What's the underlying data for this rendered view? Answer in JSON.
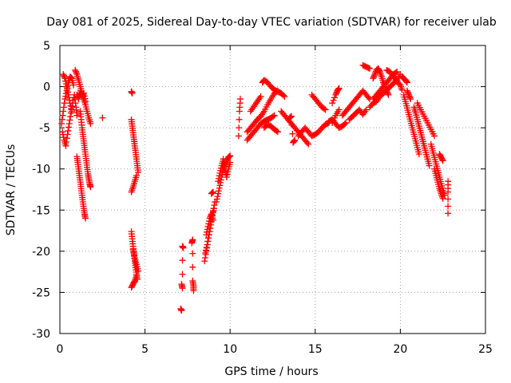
{
  "chart_data": {
    "type": "scatter",
    "title": "Day 081 of 2025, Sidereal Day-to-day VTEC variation (SDTVAR) for receiver ulab",
    "xlabel": "GPS time / hours",
    "ylabel": "SDTVAR / TECUs",
    "xlim": [
      0,
      25
    ],
    "ylim": [
      -30,
      5
    ],
    "xticks": [
      0,
      5,
      10,
      15,
      20,
      25
    ],
    "yticks": [
      -30,
      -25,
      -20,
      -15,
      -10,
      -5,
      0,
      5
    ],
    "grid": true,
    "marker": "+",
    "color": "#ff0000",
    "segments": [
      [
        [
          0.1,
          -4.5
        ],
        [
          0.2,
          -3.0
        ],
        [
          0.3,
          -1.5
        ],
        [
          0.4,
          -0.5
        ],
        [
          0.5,
          0.5
        ],
        [
          0.6,
          1.2
        ],
        [
          0.7,
          1.0
        ],
        [
          0.8,
          0.2
        ]
      ],
      [
        [
          0.15,
          -5.5
        ],
        [
          0.25,
          -6.5
        ],
        [
          0.35,
          -7.2
        ],
        [
          0.45,
          -5.8
        ],
        [
          0.55,
          -4.5
        ],
        [
          0.65,
          -3.2
        ],
        [
          0.75,
          -2.0
        ],
        [
          0.85,
          -1.0
        ],
        [
          0.95,
          -2.5
        ],
        [
          1.0,
          -3.5
        ]
      ],
      [
        [
          0.2,
          1.5
        ],
        [
          0.3,
          1.0
        ],
        [
          0.4,
          0.0
        ],
        [
          0.5,
          -1.0
        ],
        [
          0.6,
          -2.0
        ],
        [
          0.7,
          -3.0
        ]
      ],
      [
        [
          0.9,
          2.0
        ],
        [
          1.0,
          1.5
        ],
        [
          1.1,
          0.8
        ],
        [
          1.2,
          0.0
        ],
        [
          1.3,
          -0.8
        ],
        [
          1.4,
          -1.5
        ],
        [
          1.5,
          -2.2
        ],
        [
          1.6,
          -3.0
        ],
        [
          1.7,
          -3.8
        ],
        [
          1.8,
          -4.5
        ]
      ],
      [
        [
          1.0,
          -8.5
        ],
        [
          1.05,
          -9.2
        ],
        [
          1.1,
          -10.0
        ],
        [
          1.15,
          -10.8
        ],
        [
          1.2,
          -11.6
        ],
        [
          1.25,
          -12.4
        ],
        [
          1.3,
          -13.2
        ],
        [
          1.35,
          -14.0
        ],
        [
          1.4,
          -14.8
        ],
        [
          1.45,
          -15.5
        ],
        [
          1.5,
          -16.0
        ]
      ],
      [
        [
          1.2,
          -3.0
        ],
        [
          1.25,
          -4.0
        ],
        [
          1.3,
          -5.0
        ],
        [
          1.35,
          -5.8
        ],
        [
          1.4,
          -6.6
        ],
        [
          1.45,
          -7.4
        ],
        [
          1.5,
          -8.2
        ],
        [
          1.55,
          -9.0
        ],
        [
          1.6,
          -9.8
        ],
        [
          1.65,
          -10.6
        ],
        [
          1.7,
          -11.2
        ],
        [
          1.75,
          -11.8
        ],
        [
          1.8,
          -12.2
        ]
      ],
      [
        [
          1.0,
          -1.0
        ],
        [
          1.1,
          -1.5
        ],
        [
          1.2,
          -0.5
        ],
        [
          1.3,
          -1.2
        ],
        [
          1.4,
          -0.8
        ],
        [
          1.5,
          -1.8
        ]
      ],
      [
        [
          2.5,
          -3.8
        ]
      ],
      [
        [
          4.2,
          -0.6
        ],
        [
          4.25,
          -0.8
        ]
      ],
      [
        [
          4.2,
          -4.0
        ],
        [
          4.25,
          -4.8
        ],
        [
          4.3,
          -5.6
        ],
        [
          4.35,
          -6.4
        ],
        [
          4.4,
          -7.2
        ],
        [
          4.45,
          -8.0
        ],
        [
          4.5,
          -8.8
        ],
        [
          4.55,
          -9.6
        ],
        [
          4.6,
          -10.4
        ]
      ],
      [
        [
          4.2,
          -12.8
        ],
        [
          4.3,
          -12.2
        ],
        [
          4.4,
          -11.5
        ],
        [
          4.5,
          -10.8
        ]
      ],
      [
        [
          4.2,
          -17.6
        ],
        [
          4.25,
          -18.5
        ],
        [
          4.3,
          -19.4
        ],
        [
          4.35,
          -20.3
        ],
        [
          4.4,
          -21.2
        ],
        [
          4.45,
          -22.0
        ],
        [
          4.5,
          -22.8
        ],
        [
          4.55,
          -23.4
        ]
      ],
      [
        [
          4.2,
          -24.4
        ],
        [
          4.3,
          -24.0
        ],
        [
          4.4,
          -23.6
        ],
        [
          4.5,
          -23.0
        ]
      ],
      [
        [
          4.3,
          -19.8
        ],
        [
          4.4,
          -20.8
        ],
        [
          4.5,
          -21.6
        ],
        [
          4.6,
          -22.4
        ]
      ],
      [
        [
          7.1,
          -27.0
        ],
        [
          7.15,
          -27.2
        ]
      ],
      [
        [
          7.15,
          -24.0
        ],
        [
          7.2,
          -24.5
        ],
        [
          7.2,
          -19.4
        ],
        [
          7.25,
          -19.6
        ]
      ],
      [
        [
          7.75,
          -19.0
        ],
        [
          7.8,
          -18.6
        ],
        [
          7.8,
          -23.6
        ],
        [
          7.85,
          -24.2
        ],
        [
          7.85,
          -24.8
        ]
      ],
      [
        [
          8.5,
          -21.2
        ],
        [
          8.6,
          -20.0
        ],
        [
          8.7,
          -18.8
        ],
        [
          8.8,
          -17.6
        ],
        [
          8.9,
          -16.4
        ],
        [
          9.0,
          -15.2
        ],
        [
          9.1,
          -14.0
        ]
      ],
      [
        [
          8.55,
          -20.2
        ],
        [
          8.65,
          -19.2
        ],
        [
          8.75,
          -18.0
        ],
        [
          8.85,
          -16.8
        ],
        [
          8.95,
          -15.6
        ],
        [
          9.05,
          -14.8
        ]
      ],
      [
        [
          8.6,
          -18.0
        ],
        [
          8.7,
          -17.0
        ],
        [
          8.8,
          -16.0
        ],
        [
          8.9,
          -15.5
        ],
        [
          9.0,
          -16.2
        ]
      ],
      [
        [
          8.9,
          -13.0
        ],
        [
          9.0,
          -12.8
        ]
      ],
      [
        [
          9.2,
          -14.0
        ],
        [
          9.3,
          -13.0
        ],
        [
          9.4,
          -12.0
        ],
        [
          9.5,
          -11.0
        ],
        [
          9.6,
          -10.0
        ],
        [
          9.7,
          -9.5
        ],
        [
          9.8,
          -9.0
        ],
        [
          9.9,
          -8.6
        ],
        [
          10.0,
          -8.4
        ]
      ],
      [
        [
          9.3,
          -11.5
        ],
        [
          9.4,
          -10.5
        ],
        [
          9.5,
          -9.6
        ],
        [
          9.6,
          -8.8
        ],
        [
          9.7,
          -10.2
        ],
        [
          9.8,
          -11.0
        ],
        [
          9.9,
          -10.0
        ],
        [
          10.0,
          -9.2
        ]
      ],
      [
        [
          10.5,
          -6.0
        ],
        [
          10.55,
          -3.0
        ],
        [
          10.6,
          -1.5
        ]
      ],
      [
        [
          11.0,
          -6.5
        ],
        [
          11.2,
          -6.0
        ],
        [
          11.4,
          -5.5
        ],
        [
          11.6,
          -5.0
        ],
        [
          11.8,
          -4.5
        ],
        [
          12.0,
          -4.2
        ],
        [
          12.2,
          -4.0
        ],
        [
          12.4,
          -3.8
        ],
        [
          12.6,
          -3.5
        ]
      ],
      [
        [
          11.0,
          -5.5
        ],
        [
          11.2,
          -5.0
        ],
        [
          11.4,
          -4.5
        ],
        [
          11.6,
          -4.0
        ],
        [
          11.8,
          -3.6
        ],
        [
          12.0,
          -3.0
        ],
        [
          12.2,
          -2.2
        ],
        [
          12.4,
          -1.5
        ],
        [
          12.6,
          -0.8
        ],
        [
          12.8,
          -0.5
        ]
      ],
      [
        [
          11.2,
          -3.0
        ],
        [
          11.4,
          -2.4
        ],
        [
          11.6,
          -1.8
        ],
        [
          11.8,
          -1.2
        ]
      ],
      [
        [
          11.9,
          0.5
        ],
        [
          12.0,
          0.8
        ],
        [
          12.2,
          0.5
        ],
        [
          12.4,
          0.0
        ],
        [
          12.6,
          -0.4
        ],
        [
          12.8,
          -0.6
        ],
        [
          13.0,
          -0.8
        ],
        [
          13.2,
          -1.2
        ]
      ],
      [
        [
          13.0,
          -3.0
        ],
        [
          13.2,
          -3.5
        ],
        [
          13.4,
          -4.0
        ],
        [
          13.6,
          -4.5
        ],
        [
          13.8,
          -5.0
        ],
        [
          14.0,
          -5.5
        ],
        [
          14.2,
          -6.0
        ],
        [
          14.4,
          -6.5
        ],
        [
          14.6,
          -7.0
        ]
      ],
      [
        [
          12.0,
          -5.0
        ],
        [
          12.2,
          -4.6
        ],
        [
          12.4,
          -4.8
        ],
        [
          12.6,
          -5.2
        ],
        [
          12.8,
          -5.5
        ]
      ],
      [
        [
          13.5,
          -3.8
        ],
        [
          13.6,
          -3.6
        ],
        [
          13.7,
          -6.8
        ],
        [
          13.8,
          -6.5
        ]
      ],
      [
        [
          14.0,
          -6.0
        ],
        [
          14.2,
          -5.5
        ],
        [
          14.4,
          -5.0
        ],
        [
          14.6,
          -5.5
        ],
        [
          14.8,
          -6.0
        ],
        [
          15.0,
          -5.8
        ],
        [
          15.2,
          -5.5
        ],
        [
          15.4,
          -5.0
        ],
        [
          15.6,
          -4.6
        ],
        [
          15.8,
          -4.4
        ]
      ],
      [
        [
          14.8,
          -1.0
        ],
        [
          15.0,
          -1.5
        ],
        [
          15.2,
          -2.0
        ],
        [
          15.4,
          -2.5
        ],
        [
          15.6,
          -2.8
        ]
      ],
      [
        [
          15.8,
          -4.2
        ],
        [
          16.0,
          -4.0
        ],
        [
          16.2,
          -4.5
        ],
        [
          16.4,
          -5.0
        ],
        [
          16.6,
          -4.8
        ],
        [
          16.8,
          -4.4
        ]
      ],
      [
        [
          16.0,
          -2.0
        ],
        [
          16.2,
          -1.0
        ],
        [
          16.3,
          -0.5
        ],
        [
          16.4,
          -0.2
        ]
      ],
      [
        [
          16.6,
          -3.5
        ],
        [
          16.8,
          -3.0
        ],
        [
          17.0,
          -2.5
        ],
        [
          17.2,
          -2.0
        ],
        [
          17.4,
          -1.5
        ],
        [
          17.6,
          -1.0
        ],
        [
          17.8,
          -0.5
        ],
        [
          18.0,
          -1.0
        ],
        [
          18.2,
          -1.5
        ]
      ],
      [
        [
          17.0,
          -4.0
        ],
        [
          17.2,
          -3.6
        ],
        [
          17.4,
          -3.2
        ],
        [
          17.6,
          -2.8
        ],
        [
          17.8,
          -3.4
        ],
        [
          18.0,
          -2.8
        ]
      ],
      [
        [
          16.0,
          -4.4
        ],
        [
          16.2,
          -3.5
        ],
        [
          16.4,
          -2.8
        ]
      ],
      [
        [
          17.8,
          2.6
        ],
        [
          18.0,
          2.4
        ],
        [
          18.2,
          2.2
        ]
      ],
      [
        [
          18.4,
          1.0
        ],
        [
          18.5,
          1.5
        ],
        [
          18.6,
          2.0
        ],
        [
          18.7,
          2.2
        ],
        [
          18.8,
          1.8
        ],
        [
          18.9,
          1.2
        ],
        [
          19.0,
          0.5
        ],
        [
          19.1,
          0.0
        ],
        [
          19.2,
          -0.5
        ],
        [
          19.3,
          -1.0
        ]
      ],
      [
        [
          18.4,
          -1.5
        ],
        [
          18.6,
          -1.0
        ],
        [
          18.8,
          -0.5
        ],
        [
          19.0,
          0.0
        ],
        [
          19.2,
          0.5
        ],
        [
          19.4,
          1.0
        ],
        [
          19.6,
          1.5
        ],
        [
          19.8,
          1.8
        ]
      ],
      [
        [
          18.2,
          -2.5
        ],
        [
          18.4,
          -2.0
        ],
        [
          18.6,
          -1.8
        ],
        [
          18.8,
          -1.2
        ],
        [
          19.0,
          -0.8
        ],
        [
          19.2,
          -0.4
        ],
        [
          19.4,
          0.0
        ],
        [
          19.6,
          0.4
        ],
        [
          19.8,
          0.8
        ],
        [
          20.0,
          1.5
        ]
      ],
      [
        [
          19.2,
          2.0
        ],
        [
          19.4,
          1.8
        ],
        [
          19.6,
          1.2
        ],
        [
          19.8,
          0.6
        ],
        [
          20.0,
          0.2
        ],
        [
          20.1,
          -0.4
        ]
      ],
      [
        [
          20.1,
          1.2
        ],
        [
          20.2,
          1.0
        ],
        [
          20.3,
          0.8
        ],
        [
          20.4,
          0.5
        ]
      ],
      [
        [
          20.2,
          -1.0
        ],
        [
          20.3,
          -1.8
        ],
        [
          20.4,
          -2.6
        ],
        [
          20.5,
          -3.4
        ],
        [
          20.6,
          -4.2
        ],
        [
          20.7,
          -5.0
        ],
        [
          20.8,
          -5.8
        ],
        [
          20.9,
          -6.6
        ],
        [
          21.0,
          -7.4
        ],
        [
          21.1,
          -8.2
        ]
      ],
      [
        [
          20.4,
          -0.5
        ],
        [
          20.5,
          -1.0
        ],
        [
          20.6,
          -1.5
        ]
      ],
      [
        [
          20.8,
          -2.5
        ],
        [
          20.9,
          -3.2
        ],
        [
          21.0,
          -4.0
        ],
        [
          21.1,
          -4.8
        ],
        [
          21.2,
          -5.6
        ],
        [
          21.3,
          -6.4
        ],
        [
          21.4,
          -7.2
        ],
        [
          21.5,
          -8.0
        ],
        [
          21.6,
          -8.8
        ],
        [
          21.7,
          -9.6
        ]
      ],
      [
        [
          21.0,
          -2.0
        ],
        [
          21.2,
          -2.8
        ],
        [
          21.4,
          -3.6
        ],
        [
          21.6,
          -4.4
        ],
        [
          21.8,
          -5.2
        ],
        [
          22.0,
          -6.0
        ]
      ],
      [
        [
          21.8,
          -7.0
        ],
        [
          21.9,
          -7.8
        ],
        [
          22.0,
          -8.6
        ],
        [
          22.1,
          -9.4
        ],
        [
          22.2,
          -10.2
        ],
        [
          22.3,
          -11.0
        ],
        [
          22.4,
          -11.8
        ],
        [
          22.5,
          -12.6
        ],
        [
          22.6,
          -13.2
        ]
      ],
      [
        [
          22.0,
          -10.0
        ],
        [
          22.1,
          -10.8
        ],
        [
          22.2,
          -11.6
        ],
        [
          22.3,
          -12.4
        ],
        [
          22.4,
          -13.0
        ],
        [
          22.5,
          -13.6
        ]
      ],
      [
        [
          22.3,
          -8.2
        ],
        [
          22.4,
          -8.6
        ],
        [
          22.5,
          -9.0
        ]
      ],
      [
        [
          22.8,
          -11.5
        ],
        [
          22.8,
          -12.8
        ],
        [
          22.8,
          -15.4
        ]
      ]
    ]
  }
}
